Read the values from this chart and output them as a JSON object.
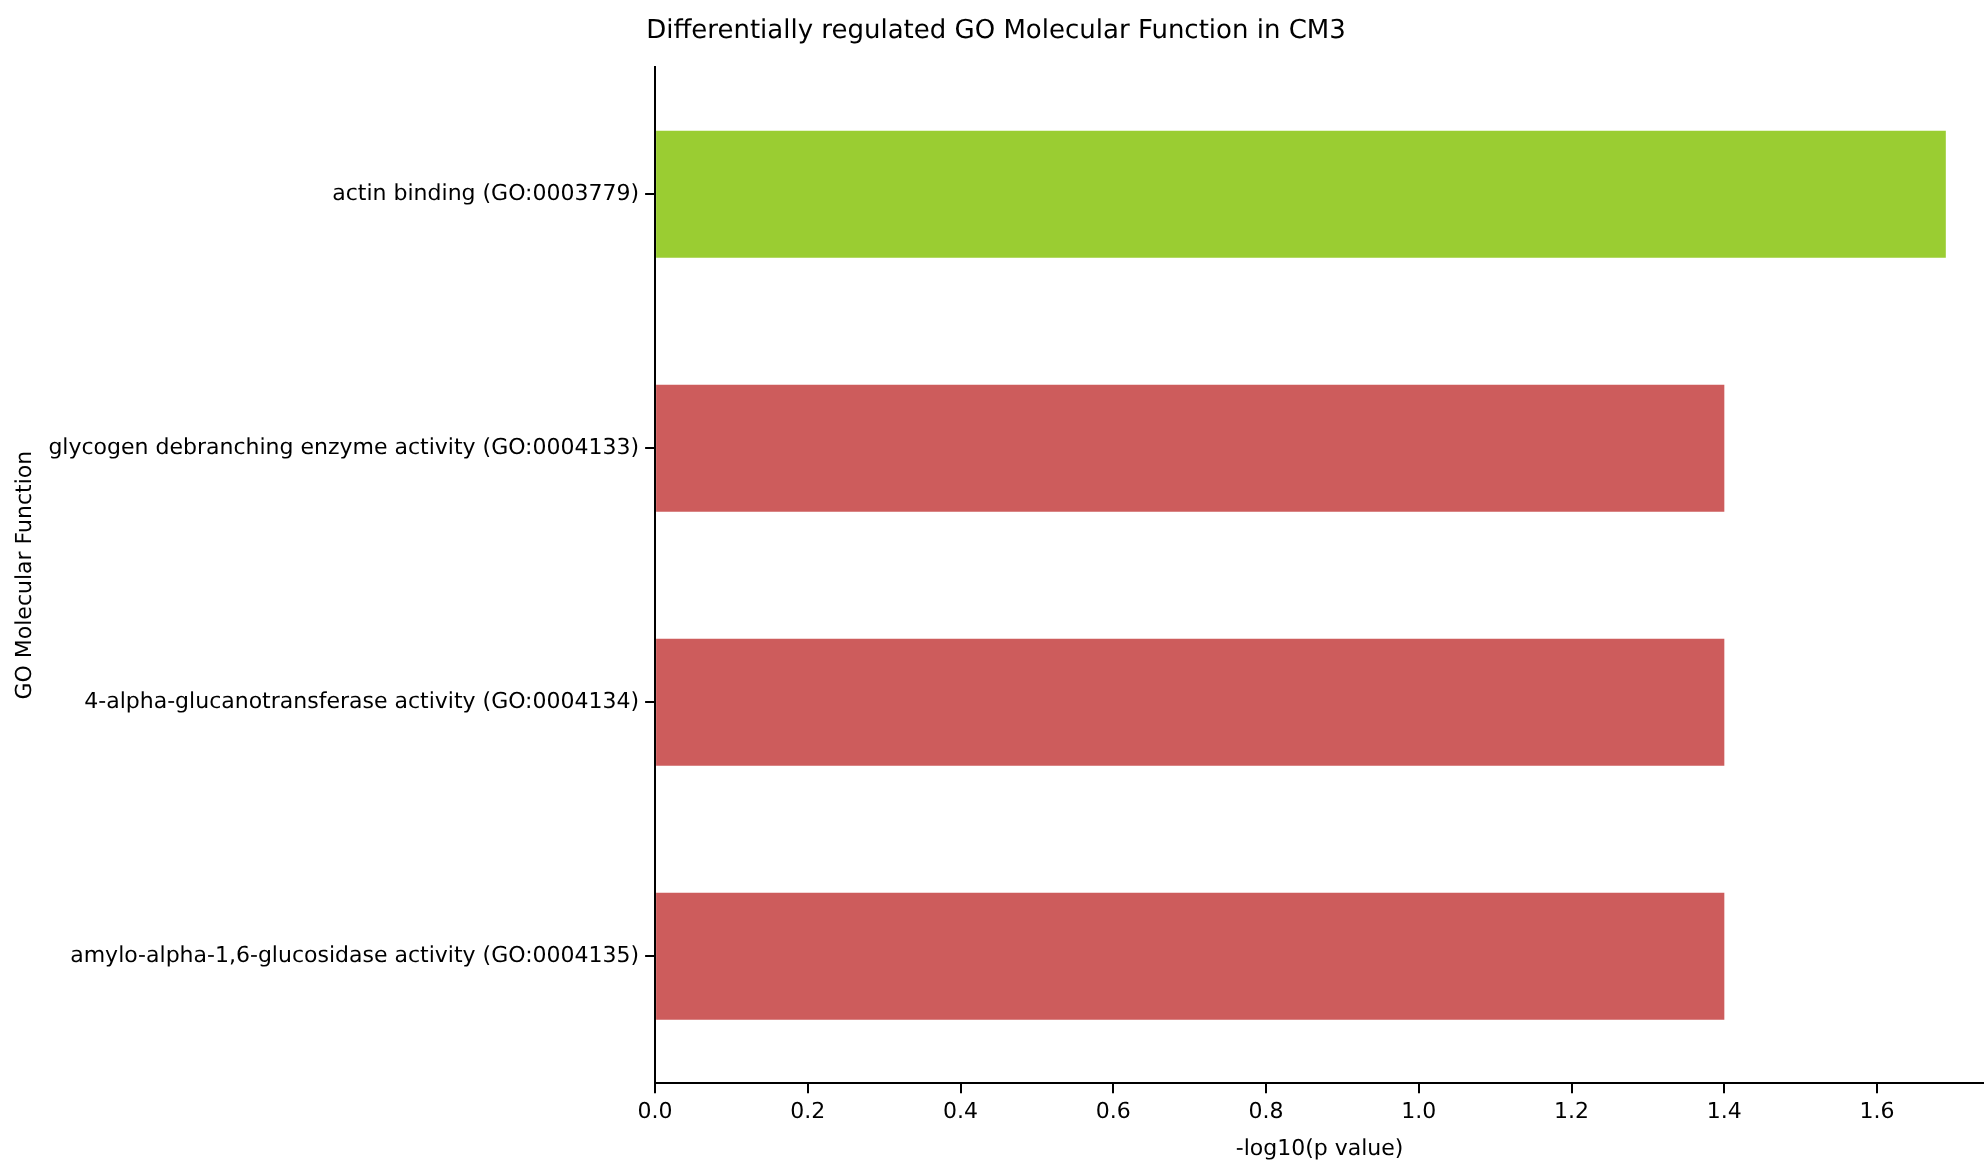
{
  "chart_data": {
    "type": "bar",
    "orientation": "horizontal",
    "title": "Differentially regulated GO Molecular Function in CM3",
    "xlabel": "-log10(p value)",
    "ylabel": "GO Molecular Function",
    "categories": [
      "actin binding (GO:0003779)",
      "glycogen debranching enzyme activity (GO:0004133)",
      "4-alpha-glucanotransferase activity (GO:0004134)",
      "amylo-alpha-1,6-glucosidase activity (GO:0004135)"
    ],
    "values": [
      1.69,
      1.4,
      1.4,
      1.4
    ],
    "colors": [
      "#9acd32",
      "#cd5c5c",
      "#cd5c5c",
      "#cd5c5c"
    ],
    "xlim": [
      0,
      1.74
    ],
    "xticks": [
      {
        "value": 0,
        "label": "0.0"
      },
      0.2,
      0.4,
      0.6,
      0.8,
      {
        "value": 1,
        "label": "1.0"
      },
      1.2,
      1.4,
      1.6
    ],
    "grid": false,
    "legend": false
  }
}
